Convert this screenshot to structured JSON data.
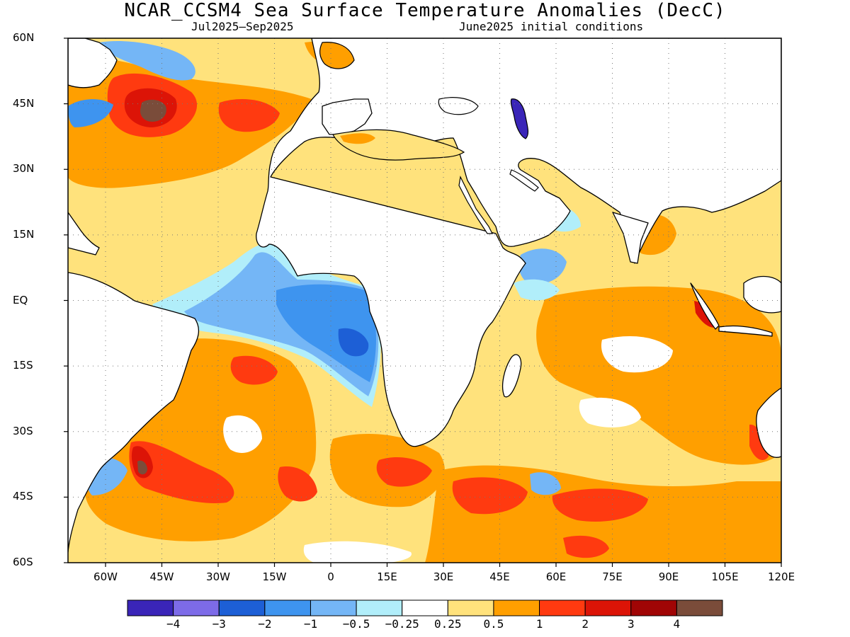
{
  "header": {
    "title": "NCAR_CCSM4 Sea Surface Temperature Anomalies (DecC)",
    "period": "Jul2025–Sep2025",
    "initial_conditions": "June2025 initial conditions"
  },
  "axes": {
    "lat_labels": [
      "60N",
      "45N",
      "30N",
      "15N",
      "EQ",
      "15S",
      "30S",
      "45S",
      "60S"
    ],
    "lon_labels": [
      "60W",
      "45W",
      "30W",
      "15W",
      "0",
      "15E",
      "30E",
      "45E",
      "60E",
      "75E",
      "90E",
      "105E",
      "120E"
    ]
  },
  "colorbar": {
    "labels": [
      "−4",
      "−3",
      "−2",
      "−1",
      "−0.5",
      "−0.25",
      "0.25",
      "0.5",
      "1",
      "2",
      "3",
      "4"
    ],
    "colors": [
      "#3a25b8",
      "#7d6be8",
      "#1d5fd6",
      "#3e94ef",
      "#74b6f6",
      "#b1eefa",
      "#ffffff",
      "#ffe27c",
      "#ff9f00",
      "#ff3a10",
      "#dc1407",
      "#a00505",
      "#7a4c3a"
    ]
  },
  "map": {
    "projection": "equirectangular",
    "lon_range": "70W–120E",
    "lat_range": "60S–60N",
    "variable": "sea surface temperature anomaly",
    "land_color": "#ffffff",
    "coastline_color": "#000000",
    "grid": "dotted lines every 15 degrees"
  }
}
